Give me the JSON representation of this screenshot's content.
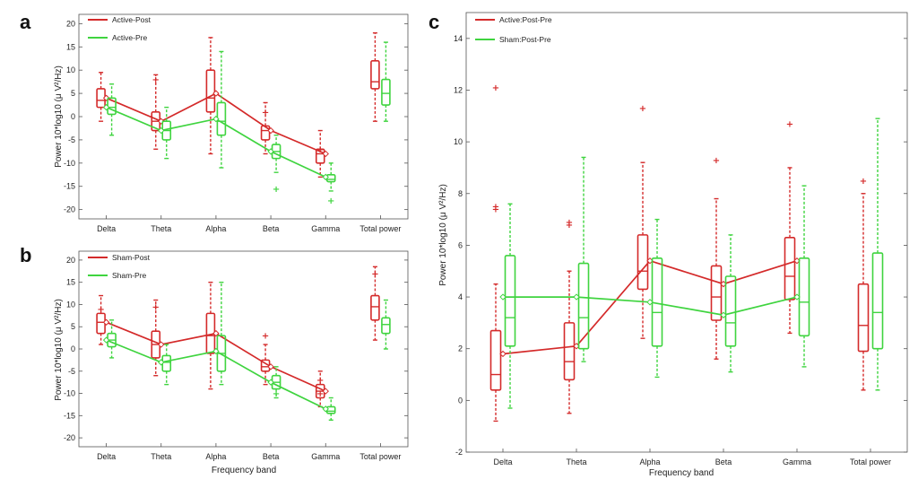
{
  "panels": [
    {
      "letter": "a",
      "chart_data": {
        "type": "box",
        "categories": [
          "Delta",
          "Theta",
          "Alpha",
          "Beta",
          "Gamma",
          "Total power"
        ],
        "xlabel": "",
        "ylabel": "Power 10*log10 (μ V²/Hz)",
        "ylim": [
          -22,
          22
        ],
        "yticks": [
          -20,
          -15,
          -10,
          -5,
          0,
          5,
          10,
          15,
          20
        ],
        "legend": "top-left",
        "series": [
          {
            "name": "Active-Post",
            "color": "#d42a2a",
            "means": [
              4,
              -1,
              5,
              -3,
              -8,
              null
            ],
            "boxes": [
              {
                "wlo": -1,
                "q1": 2,
                "med": 3.5,
                "q3": 6,
                "whi": 9.5,
                "outliers": []
              },
              {
                "wlo": -7,
                "q1": -3,
                "med": -1,
                "q3": 1,
                "whi": 9,
                "outliers": [
                  8
                ]
              },
              {
                "wlo": -8,
                "q1": 1,
                "med": 4,
                "q3": 10,
                "whi": 17,
                "outliers": []
              },
              {
                "wlo": -8,
                "q1": -5,
                "med": -3,
                "q3": -2,
                "whi": 3,
                "outliers": [
                  1
                ]
              },
              {
                "wlo": -13,
                "q1": -10,
                "med": -8,
                "q3": -7,
                "whi": -3,
                "outliers": [
                  -7
                ]
              },
              {
                "wlo": -1,
                "q1": 6,
                "med": 7.5,
                "q3": 12,
                "whi": 18,
                "outliers": []
              }
            ]
          },
          {
            "name": "Active-Pre",
            "color": "#3fd43f",
            "means": [
              2,
              -3,
              -0.5,
              -7.5,
              -13,
              null
            ],
            "boxes": [
              {
                "wlo": -4,
                "q1": 0.5,
                "med": 2,
                "q3": 4,
                "whi": 7,
                "outliers": []
              },
              {
                "wlo": -9,
                "q1": -5,
                "med": -3,
                "q3": -1,
                "whi": 2,
                "outliers": []
              },
              {
                "wlo": -11,
                "q1": -4,
                "med": -1,
                "q3": 3,
                "whi": 14,
                "outliers": []
              },
              {
                "wlo": -12,
                "q1": -9,
                "med": -7.5,
                "q3": -6,
                "whi": -4,
                "outliers": [
                  -15.5
                ]
              },
              {
                "wlo": -16,
                "q1": -14,
                "med": -13.5,
                "q3": -12.5,
                "whi": -10,
                "outliers": [
                  -18
                ]
              },
              {
                "wlo": -1,
                "q1": 2.5,
                "med": 5,
                "q3": 8,
                "whi": 16,
                "outliers": []
              }
            ]
          }
        ]
      }
    },
    {
      "letter": "b",
      "chart_data": {
        "type": "box",
        "categories": [
          "Delta",
          "Theta",
          "Alpha",
          "Beta",
          "Gamma",
          "Total power"
        ],
        "xlabel": "Frequency band",
        "ylabel": "Power 10*log10 (μ V²/Hz)",
        "ylim": [
          -22,
          22
        ],
        "yticks": [
          -20,
          -15,
          -10,
          -5,
          0,
          5,
          10,
          15,
          20
        ],
        "legend": "top-left",
        "series": [
          {
            "name": "Sham-Post",
            "color": "#d42a2a",
            "means": [
              6,
              1,
              3.5,
              -4,
              -9.5,
              null
            ],
            "boxes": [
              {
                "wlo": 1,
                "q1": 3.5,
                "med": 6,
                "q3": 8,
                "whi": 12,
                "outliers": [
                  9
                ]
              },
              {
                "wlo": -6,
                "q1": -2,
                "med": 1,
                "q3": 4,
                "whi": 11,
                "outliers": [
                  9.5
                ]
              },
              {
                "wlo": -9,
                "q1": -1,
                "med": 3,
                "q3": 8,
                "whi": 15,
                "outliers": []
              },
              {
                "wlo": -8,
                "q1": -5,
                "med": -4,
                "q3": -2.5,
                "whi": 1,
                "outliers": [
                  3
                ]
              },
              {
                "wlo": -13,
                "q1": -11,
                "med": -9.5,
                "q3": -8,
                "whi": -5,
                "outliers": [
                  -7,
                  -10
                ]
              },
              {
                "wlo": 2,
                "q1": 6.5,
                "med": 9.5,
                "q3": 12,
                "whi": 18.5,
                "outliers": [
                  17
                ]
              }
            ]
          },
          {
            "name": "Sham-Pre",
            "color": "#3fd43f",
            "means": [
              2,
              -3,
              -0.5,
              -7.5,
              -13.5,
              null
            ],
            "boxes": [
              {
                "wlo": -2,
                "q1": 0.5,
                "med": 2,
                "q3": 3.5,
                "whi": 6.5,
                "outliers": []
              },
              {
                "wlo": -8,
                "q1": -5,
                "med": -3,
                "q3": -1.5,
                "whi": 1,
                "outliers": []
              },
              {
                "wlo": -8,
                "q1": -5,
                "med": -1,
                "q3": 3,
                "whi": 15,
                "outliers": []
              },
              {
                "wlo": -11,
                "q1": -9,
                "med": -7.5,
                "q3": -6,
                "whi": -4,
                "outliers": [
                  -10
                ]
              },
              {
                "wlo": -16,
                "q1": -14.5,
                "med": -14,
                "q3": -13,
                "whi": -11,
                "outliers": []
              },
              {
                "wlo": 0,
                "q1": 3.5,
                "med": 5.5,
                "q3": 7,
                "whi": 11,
                "outliers": []
              }
            ]
          }
        ]
      }
    },
    {
      "letter": "c",
      "chart_data": {
        "type": "box",
        "categories": [
          "Delta",
          "Theta",
          "Alpha",
          "Beta",
          "Gamma",
          "Total power"
        ],
        "xlabel": "Frequency band",
        "ylabel": "Power 10*log10 (μ V²/Hz)",
        "ylim": [
          -2,
          15
        ],
        "yticks": [
          -2,
          0,
          2,
          4,
          6,
          8,
          10,
          12,
          14
        ],
        "legend": "top-left",
        "series": [
          {
            "name": "Active:Post-Pre",
            "color": "#d42a2a",
            "means": [
              1.8,
              2.1,
              5.4,
              4.5,
              5.4,
              null
            ],
            "boxes": [
              {
                "wlo": -0.8,
                "q1": 0.4,
                "med": 1,
                "q3": 2.7,
                "whi": 4.5,
                "outliers": [
                  7.4,
                  7.5,
                  12.1
                ]
              },
              {
                "wlo": -0.5,
                "q1": 0.8,
                "med": 1.5,
                "q3": 3,
                "whi": 5,
                "outliers": [
                  6.8,
                  6.9
                ]
              },
              {
                "wlo": 2.4,
                "q1": 4.3,
                "med": 5,
                "q3": 6.4,
                "whi": 9.2,
                "outliers": [
                  11.3
                ]
              },
              {
                "wlo": 1.6,
                "q1": 3.1,
                "med": 4,
                "q3": 5.2,
                "whi": 7.8,
                "outliers": [
                  9.3
                ]
              },
              {
                "wlo": 2.6,
                "q1": 3.9,
                "med": 4.8,
                "q3": 6.3,
                "whi": 9,
                "outliers": [
                  10.7
                ]
              },
              {
                "wlo": 0.4,
                "q1": 1.9,
                "med": 2.9,
                "q3": 4.5,
                "whi": 8,
                "outliers": [
                  8.5
                ]
              }
            ]
          },
          {
            "name": "Sham:Post-Pre",
            "color": "#3fd43f",
            "means": [
              4,
              4,
              3.8,
              3.3,
              4,
              null
            ],
            "boxes": [
              {
                "wlo": -0.3,
                "q1": 2.1,
                "med": 3.2,
                "q3": 5.6,
                "whi": 7.6,
                "outliers": []
              },
              {
                "wlo": 1.5,
                "q1": 2,
                "med": 3.2,
                "q3": 5.3,
                "whi": 9.4,
                "outliers": []
              },
              {
                "wlo": 0.9,
                "q1": 2.1,
                "med": 3.4,
                "q3": 5.5,
                "whi": 7,
                "outliers": []
              },
              {
                "wlo": 1.1,
                "q1": 2.1,
                "med": 3,
                "q3": 4.8,
                "whi": 6.4,
                "outliers": []
              },
              {
                "wlo": 1.3,
                "q1": 2.5,
                "med": 3.8,
                "q3": 5.5,
                "whi": 8.3,
                "outliers": []
              },
              {
                "wlo": 0.4,
                "q1": 2,
                "med": 3.4,
                "q3": 5.7,
                "whi": 10.9,
                "outliers": []
              }
            ]
          }
        ]
      }
    }
  ]
}
